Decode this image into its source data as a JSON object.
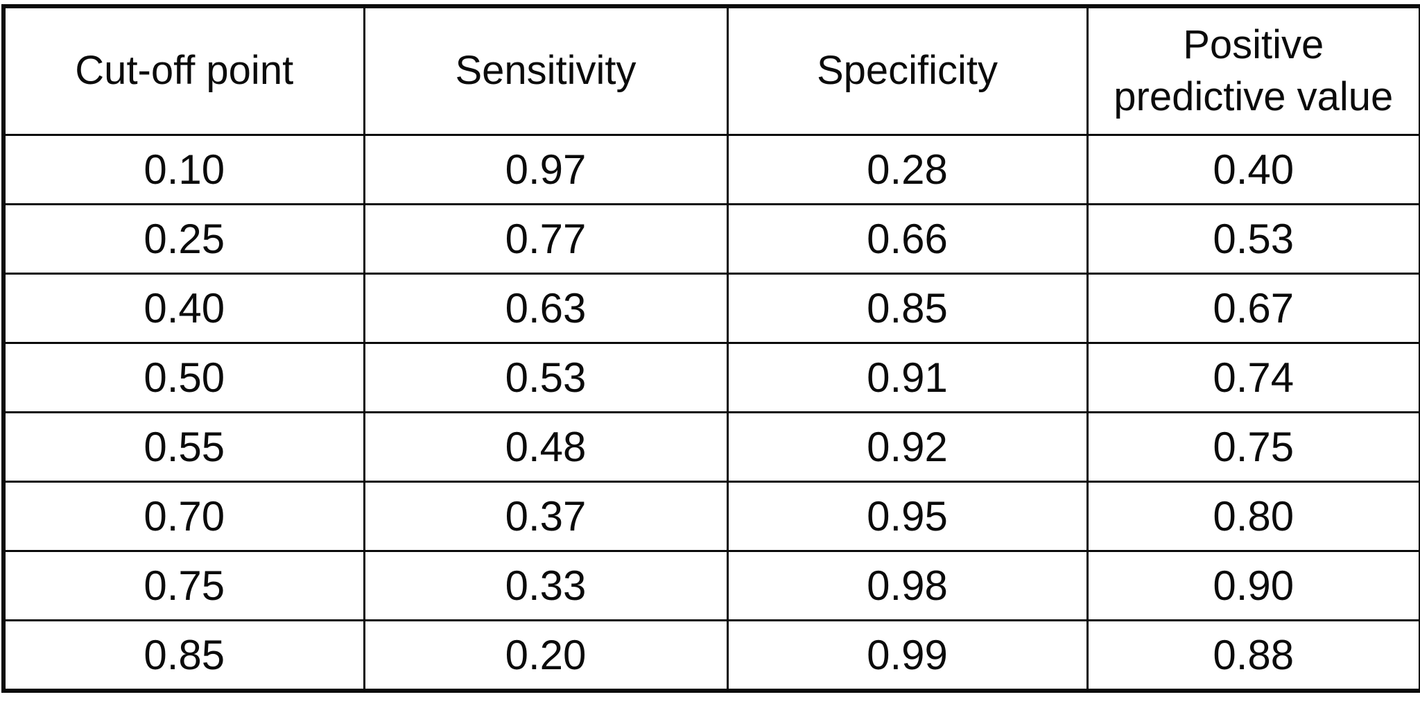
{
  "table": {
    "headers": [
      "Cut-off point",
      "Sensitivity",
      "Specificity",
      "Positive predictive value"
    ],
    "rows": [
      [
        "0.10",
        "0.97",
        "0.28",
        "0.40"
      ],
      [
        "0.25",
        "0.77",
        "0.66",
        "0.53"
      ],
      [
        "0.40",
        "0.63",
        "0.85",
        "0.67"
      ],
      [
        "0.50",
        "0.53",
        "0.91",
        "0.74"
      ],
      [
        "0.55",
        "0.48",
        "0.92",
        "0.75"
      ],
      [
        "0.70",
        "0.37",
        "0.95",
        "0.80"
      ],
      [
        "0.75",
        "0.33",
        "0.98",
        "0.90"
      ],
      [
        "0.85",
        "0.20",
        "0.99",
        "0.88"
      ]
    ]
  },
  "colors": {
    "border": "#0b0b0b",
    "background": "#ffffff",
    "text": "#0b0b0b"
  },
  "chart_data": {
    "type": "table",
    "title": "",
    "columns": [
      "Cut-off point",
      "Sensitivity",
      "Specificity",
      "Positive predictive value"
    ],
    "cutoff_points": [
      0.1,
      0.25,
      0.4,
      0.5,
      0.55,
      0.7,
      0.75,
      0.85
    ],
    "series": [
      {
        "name": "Sensitivity",
        "values": [
          0.97,
          0.77,
          0.63,
          0.53,
          0.48,
          0.37,
          0.33,
          0.2
        ]
      },
      {
        "name": "Specificity",
        "values": [
          0.28,
          0.66,
          0.85,
          0.91,
          0.92,
          0.95,
          0.98,
          0.99
        ]
      },
      {
        "name": "Positive predictive value",
        "values": [
          0.4,
          0.53,
          0.67,
          0.74,
          0.75,
          0.8,
          0.9,
          0.88
        ]
      }
    ],
    "layout": "grid table, black borders, white background, centered values"
  }
}
